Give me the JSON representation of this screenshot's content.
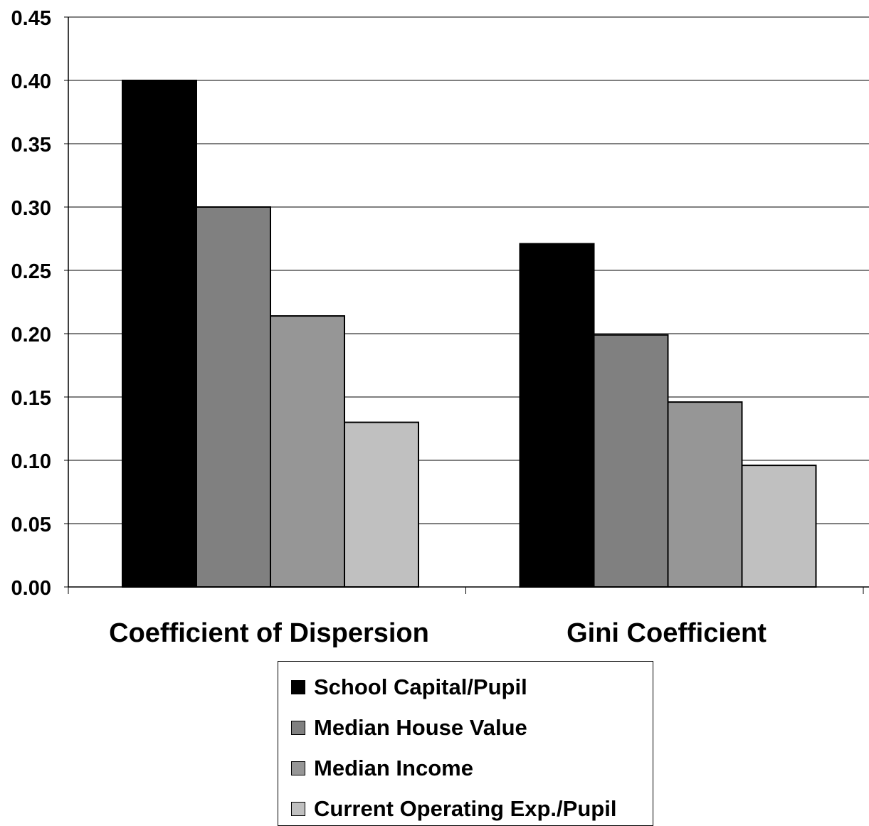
{
  "chart_data": {
    "type": "bar",
    "title": "",
    "xlabel": "",
    "ylabel": "",
    "categories": [
      "Coefficient of Dispersion",
      "Gini Coefficient"
    ],
    "ylim": [
      0,
      0.45
    ],
    "yticks": [
      "0.00",
      "0.05",
      "0.10",
      "0.15",
      "0.20",
      "0.25",
      "0.30",
      "0.35",
      "0.40",
      "0.45"
    ],
    "grid": true,
    "legend_position": "bottom",
    "series": [
      {
        "name": "School Capital/Pupil",
        "color": "#000000",
        "values": [
          0.4,
          0.271
        ]
      },
      {
        "name": "Median House Value",
        "color": "#808080",
        "values": [
          0.3,
          0.199
        ]
      },
      {
        "name": "Median Income",
        "color": "#969696",
        "values": [
          0.214,
          0.146
        ]
      },
      {
        "name": "Current Operating Exp./Pupil",
        "color": "#c0c0c0",
        "values": [
          0.13,
          0.096
        ]
      }
    ]
  }
}
